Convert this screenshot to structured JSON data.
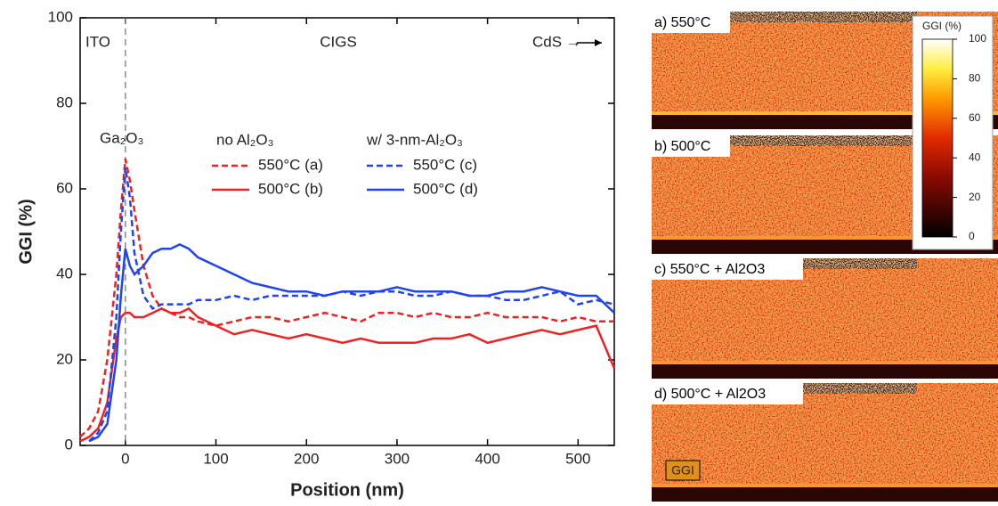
{
  "chart_data": {
    "type": "line",
    "x_label": "Position (nm)",
    "y_label": "GGI (%)",
    "annotations": [
      "ITO",
      "CIGS",
      "CdS →",
      "Ga₂O₃"
    ],
    "legend_groups": [
      "no Al₂O₃",
      "w/ 3-nm-Al₂O₃"
    ],
    "xlim": [
      -50,
      540
    ],
    "ylim": [
      0,
      100
    ],
    "xticks": [
      0,
      100,
      200,
      300,
      400,
      500
    ],
    "yticks": [
      0,
      20,
      40,
      60,
      80,
      100
    ],
    "x": [
      -50,
      -40,
      -30,
      -20,
      -10,
      -5,
      0,
      5,
      10,
      20,
      30,
      40,
      50,
      60,
      70,
      80,
      100,
      120,
      140,
      160,
      180,
      200,
      220,
      240,
      260,
      280,
      300,
      320,
      340,
      360,
      380,
      400,
      420,
      440,
      460,
      480,
      500,
      520,
      540
    ],
    "series": [
      {
        "name": "550°C (a)",
        "color": "#ee2222",
        "dash": true,
        "values": [
          2,
          4,
          8,
          20,
          40,
          55,
          67,
          62,
          55,
          42,
          35,
          32,
          31,
          30,
          30,
          29,
          28,
          29,
          30,
          30,
          29,
          30,
          31,
          30,
          29,
          31,
          31,
          30,
          31,
          30,
          30,
          31,
          30,
          30,
          30,
          29,
          30,
          29,
          29
        ]
      },
      {
        "name": "500°C (b)",
        "color": "#ee2222",
        "dash": false,
        "values": [
          1,
          2,
          4,
          10,
          25,
          30,
          31,
          31,
          30,
          30,
          31,
          32,
          31,
          31,
          32,
          30,
          28,
          26,
          27,
          26,
          25,
          26,
          25,
          24,
          25,
          24,
          24,
          24,
          25,
          25,
          26,
          24,
          25,
          26,
          27,
          26,
          27,
          28,
          18
        ]
      },
      {
        "name": "550°C (c)",
        "color": "#2244ee",
        "dash": true,
        "values": [
          null,
          1,
          3,
          8,
          30,
          50,
          65,
          58,
          45,
          35,
          32,
          33,
          33,
          33,
          33,
          34,
          34,
          35,
          34,
          35,
          35,
          35,
          35,
          36,
          35,
          36,
          36,
          35,
          35,
          36,
          35,
          35,
          34,
          34,
          35,
          36,
          33,
          34,
          33
        ]
      },
      {
        "name": "500°C (d)",
        "color": "#2244ee",
        "dash": false,
        "values": [
          null,
          1,
          2,
          5,
          20,
          35,
          46,
          42,
          40,
          42,
          45,
          46,
          46,
          47,
          46,
          44,
          42,
          40,
          38,
          37,
          36,
          36,
          35,
          36,
          36,
          36,
          37,
          36,
          36,
          36,
          35,
          35,
          36,
          36,
          37,
          36,
          35,
          35,
          31
        ]
      }
    ]
  },
  "panels": {
    "labels": [
      "a) 550°C",
      "b) 500°C",
      "c) 550°C + Al2O3",
      "d) 500°C + Al2O3"
    ],
    "inset_label": "GGI",
    "colorbar": {
      "label": "GGI (%)",
      "lim": [
        0,
        100
      ],
      "ticks": [
        0,
        20,
        40,
        60,
        80,
        100
      ]
    }
  }
}
